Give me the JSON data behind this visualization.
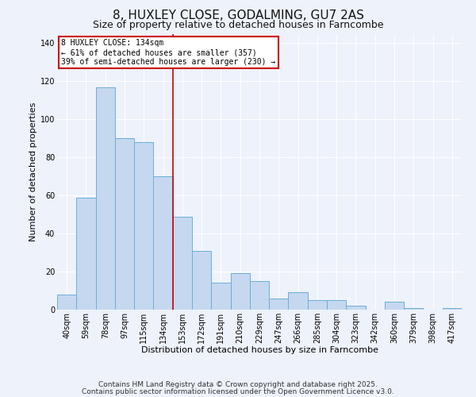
{
  "title": "8, HUXLEY CLOSE, GODALMING, GU7 2AS",
  "subtitle": "Size of property relative to detached houses in Farncombe",
  "xlabel": "Distribution of detached houses by size in Farncombe",
  "ylabel": "Number of detached properties",
  "bar_labels": [
    "40sqm",
    "59sqm",
    "78sqm",
    "97sqm",
    "115sqm",
    "134sqm",
    "153sqm",
    "172sqm",
    "191sqm",
    "210sqm",
    "229sqm",
    "247sqm",
    "266sqm",
    "285sqm",
    "304sqm",
    "323sqm",
    "342sqm",
    "360sqm",
    "379sqm",
    "398sqm",
    "417sqm"
  ],
  "bar_values": [
    8,
    59,
    117,
    90,
    88,
    70,
    49,
    31,
    14,
    19,
    15,
    6,
    9,
    5,
    5,
    2,
    0,
    4,
    1,
    0,
    1
  ],
  "bar_color": "#c5d8f0",
  "bar_edge_color": "#6baed6",
  "vline_x": 5.5,
  "vline_color": "#cc0000",
  "annotation_title": "8 HUXLEY CLOSE: 134sqm",
  "annotation_line1": "← 61% of detached houses are smaller (357)",
  "annotation_line2": "39% of semi-detached houses are larger (230) →",
  "annotation_box_color": "#ffffff",
  "annotation_box_edge_color": "#cc0000",
  "ylim": [
    0,
    145
  ],
  "yticks": [
    0,
    20,
    40,
    60,
    80,
    100,
    120,
    140
  ],
  "footer1": "Contains HM Land Registry data © Crown copyright and database right 2025.",
  "footer2": "Contains public sector information licensed under the Open Government Licence v3.0.",
  "background_color": "#eef2fb",
  "grid_color": "#ffffff",
  "title_fontsize": 11,
  "subtitle_fontsize": 9,
  "axis_label_fontsize": 8,
  "tick_fontsize": 7,
  "footer_fontsize": 6.5
}
